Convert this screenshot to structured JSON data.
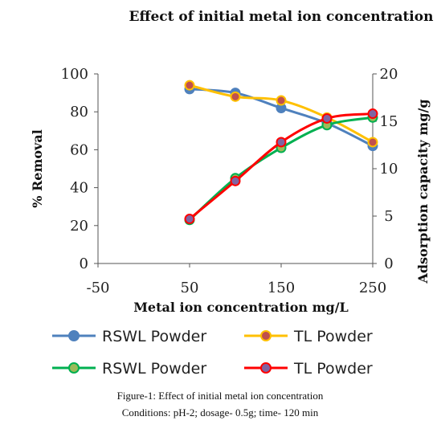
{
  "chart_data": {
    "type": "line",
    "title": "Effect of initial metal ion concentration",
    "xlabel": "Metal ion concentration mg/L",
    "ylabel_left": "% Removal",
    "ylabel_right": "Adsorption capacity mg/g",
    "x_ticks": [
      "-50",
      "50",
      "150",
      "250"
    ],
    "y_left_ticks": [
      "0",
      "20",
      "40",
      "60",
      "80",
      "100"
    ],
    "y_right_ticks": [
      "0",
      "5",
      "10",
      "15",
      "20"
    ],
    "xlim": [
      -50,
      250
    ],
    "ylim_left": [
      0,
      100
    ],
    "ylim_right": [
      0,
      20
    ],
    "grid": false,
    "legend_position": "bottom",
    "x": [
      50,
      100,
      150,
      200,
      250
    ],
    "series": [
      {
        "name": "RSWL Powder",
        "axis": "left",
        "color": "#4f81bd",
        "marker_fill": "#4f81bd",
        "marker_stroke": "#4f81bd",
        "values": [
          92,
          90,
          82,
          74,
          62
        ]
      },
      {
        "name": "TL Powder",
        "axis": "left",
        "color": "#ffc000",
        "marker_fill": "#c0504d",
        "marker_stroke": "#ffc000",
        "values": [
          94,
          88,
          86,
          77,
          64
        ]
      },
      {
        "name": "RSWL Powder",
        "axis": "right",
        "color": "#00b050",
        "marker_fill": "#9bbb59",
        "marker_stroke": "#00b050",
        "values": [
          4.6,
          9.0,
          12.2,
          14.6,
          15.4
        ]
      },
      {
        "name": "TL Powder",
        "axis": "right",
        "color": "#ff0000",
        "marker_fill": "#8064a2",
        "marker_stroke": "#ff0000",
        "values": [
          4.7,
          8.7,
          12.8,
          15.3,
          15.8
        ]
      }
    ]
  },
  "caption": {
    "line1": "Figure-1: Effect of initial metal ion concentration",
    "line2": "Conditions: pH-2; dosage- 0.5g; time- 120 min"
  }
}
